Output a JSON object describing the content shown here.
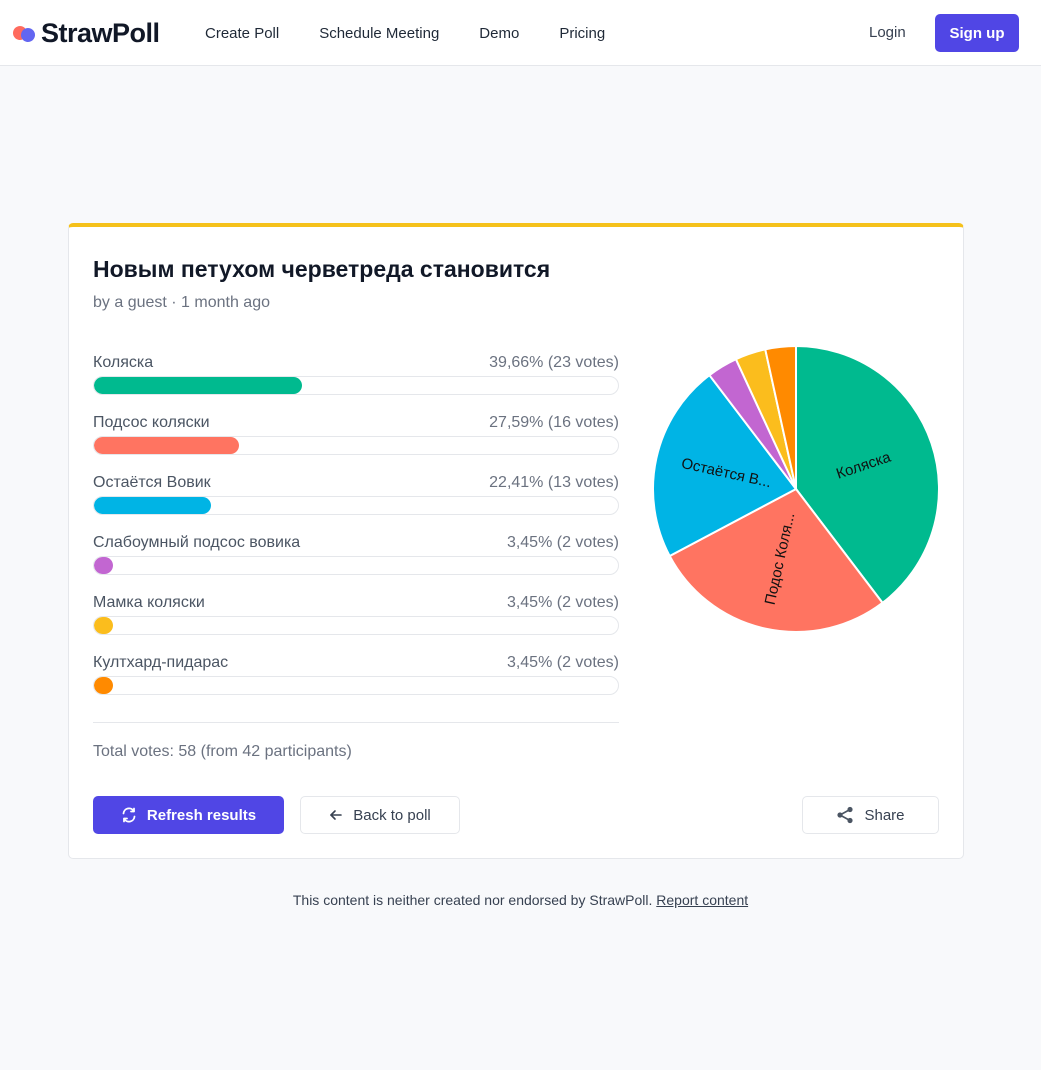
{
  "brand": {
    "name": "StrawPoll"
  },
  "nav": {
    "items": [
      "Create Poll",
      "Schedule Meeting",
      "Demo",
      "Pricing"
    ],
    "login": "Login",
    "signup": "Sign up"
  },
  "poll": {
    "title": "Новым петухом черветреда становится",
    "meta": "by a guest · 1 month ago",
    "options": [
      {
        "label": "Коляска",
        "count": "39,66% (23 votes)",
        "percent": 39.66,
        "color": "#00ba8f"
      },
      {
        "label": "Подсос коляски",
        "count": "27,59% (16 votes)",
        "percent": 27.59,
        "color": "#ff7461"
      },
      {
        "label": "Остаётся Вовик",
        "count": "22,41% (13 votes)",
        "percent": 22.41,
        "color": "#00b4e5"
      },
      {
        "label": "Слабоумный подсос вовика",
        "count": "3,45% (2 votes)",
        "percent": 3.45,
        "color": "#c266d1"
      },
      {
        "label": "Мамка коляски",
        "count": "3,45% (2 votes)",
        "percent": 3.45,
        "color": "#fbbd1d"
      },
      {
        "label": "Култхард-пидарас",
        "count": "3,45% (2 votes)",
        "percent": 3.45,
        "color": "#ff8a00"
      }
    ],
    "total": "Total votes: 58 (from 42 participants)",
    "pie_labels": [
      "Коляска",
      "Подос Коля...",
      "Остаётся В..."
    ]
  },
  "buttons": {
    "refresh": "Refresh results",
    "back": "Back to poll",
    "share": "Share"
  },
  "footer": {
    "text": "This content is neither created nor endorsed by StrawPoll.",
    "link": "Report content"
  },
  "icons": {
    "logo": "strawpoll-logo-icon",
    "refresh": "refresh-icon",
    "back": "arrow-left-icon",
    "share": "share-icon"
  }
}
